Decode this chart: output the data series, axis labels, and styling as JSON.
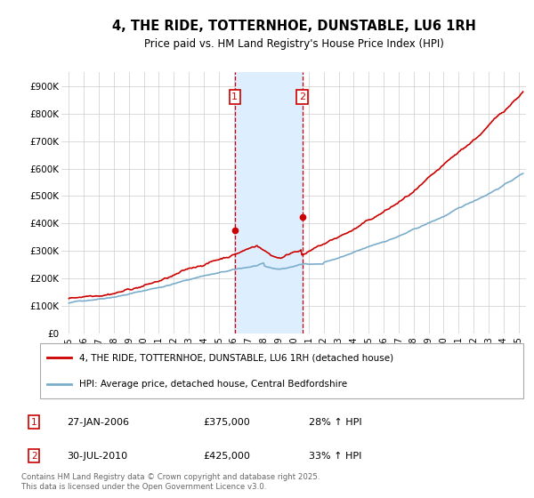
{
  "title": "4, THE RIDE, TOTTERNHOE, DUNSTABLE, LU6 1RH",
  "subtitle": "Price paid vs. HM Land Registry's House Price Index (HPI)",
  "legend_line1": "4, THE RIDE, TOTTERNHOE, DUNSTABLE, LU6 1RH (detached house)",
  "legend_line2": "HPI: Average price, detached house, Central Bedfordshire",
  "marker1_date": "27-JAN-2006",
  "marker1_price": 375000,
  "marker1_hpi": "28% ↑ HPI",
  "marker2_date": "30-JUL-2010",
  "marker2_price": 425000,
  "marker2_hpi": "33% ↑ HPI",
  "footer": "Contains HM Land Registry data © Crown copyright and database right 2025.\nThis data is licensed under the Open Government Licence v3.0.",
  "red_color": "#cc0000",
  "blue_color": "#7aadcc",
  "shade_color": "#ddeeff",
  "grid_color": "#cccccc",
  "background_color": "#ffffff",
  "ylim": [
    0,
    950000
  ],
  "yticks": [
    0,
    100000,
    200000,
    300000,
    400000,
    500000,
    600000,
    700000,
    800000,
    900000
  ],
  "xlim_start": 1994.5,
  "xlim_end": 2025.5,
  "marker1_x": 2006.07,
  "marker2_x": 2010.58
}
